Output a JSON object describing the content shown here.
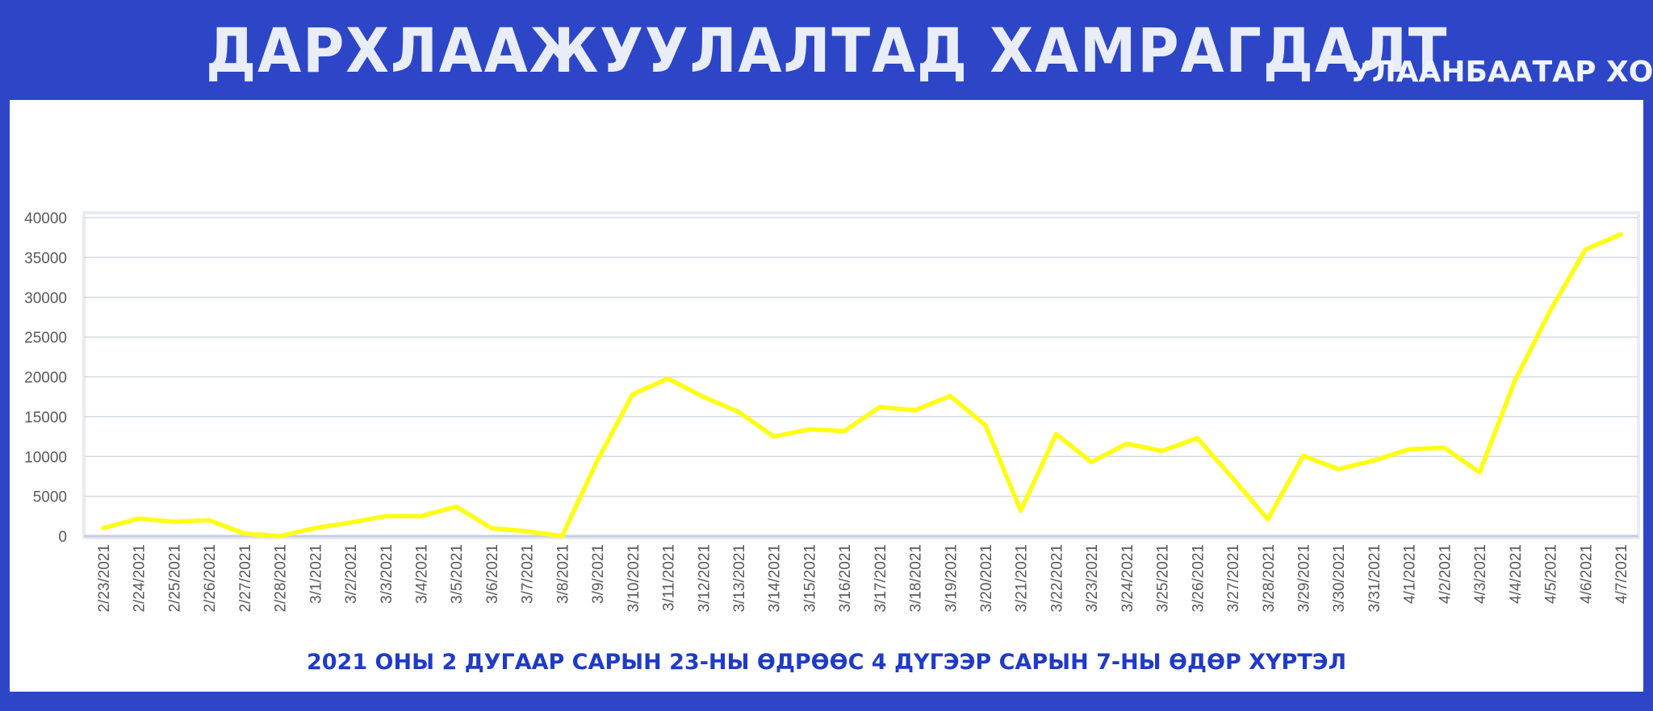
{
  "header": {
    "title": "ДАРХЛААЖУУЛАЛТАД ХАМРАГДАЛТ",
    "subtitle": "УЛААНБААТАР ХОТ"
  },
  "footer": {
    "caption": "2021 ОНЫ 2 ДУГААР САРЫН 23-НЫ ӨДРӨӨС 4 ДҮГЭЭР САРЫН 7-НЫ ӨДӨР ХҮРТЭЛ"
  },
  "colors": {
    "background": "#2d46c8",
    "panel": "#ffffff",
    "line": "#ffff14",
    "grid": "#d6d9e2",
    "tick_text": "#595959",
    "caption": "#1f3bc6"
  },
  "chart_data": {
    "type": "line",
    "title": "",
    "xlabel": "",
    "ylabel": "",
    "ylim": [
      0,
      40000
    ],
    "yticks": [
      "0",
      "5000",
      "10000",
      "15000",
      "20000",
      "25000",
      "30000",
      "35000",
      "40000"
    ],
    "grid": true,
    "legend": "none",
    "categories": [
      "2/23/2021",
      "2/24/2021",
      "2/25/2021",
      "2/26/2021",
      "2/27/2021",
      "2/28/2021",
      "3/1/2021",
      "3/2/2021",
      "3/3/2021",
      "3/4/2021",
      "3/5/2021",
      "3/6/2021",
      "3/7/2021",
      "3/8/2021",
      "3/9/2021",
      "3/10/2021",
      "3/11/2021",
      "3/12/2021",
      "3/13/2021",
      "3/14/2021",
      "3/15/2021",
      "3/16/2021",
      "3/17/2021",
      "3/18/2021",
      "3/19/2021",
      "3/20/2021",
      "3/21/2021",
      "3/22/2021",
      "3/23/2021",
      "3/24/2021",
      "3/25/2021",
      "3/26/2021",
      "3/27/2021",
      "3/28/2021",
      "3/29/2021",
      "3/30/2021",
      "3/31/2021",
      "4/1/2021",
      "4/2/2021",
      "4/3/2021",
      "4/4/2021",
      "4/5/2021",
      "4/6/2021",
      "4/7/2021"
    ],
    "values": [
      1000,
      2200,
      1800,
      2000,
      300,
      0,
      1000,
      1700,
      2500,
      2500,
      3700,
      1000,
      600,
      0,
      9500,
      17800,
      19800,
      17500,
      15600,
      12500,
      13400,
      13200,
      16200,
      15800,
      17600,
      13900,
      3200,
      12800,
      9300,
      11600,
      10700,
      12300,
      7300,
      2100,
      10100,
      8400,
      9500,
      10900,
      11100,
      8000,
      19500,
      28300,
      36000,
      37900
    ]
  }
}
